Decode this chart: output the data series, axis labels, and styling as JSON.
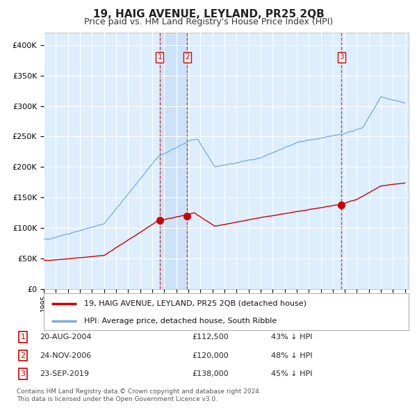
{
  "title": "19, HAIG AVENUE, LEYLAND, PR25 2QB",
  "subtitle": "Price paid vs. HM Land Registry's House Price Index (HPI)",
  "title_fontsize": 11,
  "subtitle_fontsize": 9,
  "background_color": "#ffffff",
  "plot_bg_color": "#ddeeff",
  "grid_color": "#ffffff",
  "red_line_color": "#cc0000",
  "blue_line_color": "#7aaadd",
  "dashed_line_color": "#cc0000",
  "marker_color": "#cc0000",
  "ylim": [
    0,
    420000
  ],
  "yticks": [
    0,
    50000,
    100000,
    150000,
    200000,
    250000,
    300000,
    350000,
    400000
  ],
  "ytick_labels": [
    "£0",
    "£50K",
    "£100K",
    "£150K",
    "£200K",
    "£250K",
    "£300K",
    "£350K",
    "£400K"
  ],
  "year_start": 1995,
  "year_end": 2025,
  "transactions": [
    {
      "id": 1,
      "date_label": "20-AUG-2004",
      "year": 2004.63,
      "price": 112500,
      "pct": "43%",
      "dir": "↓"
    },
    {
      "id": 2,
      "date_label": "24-NOV-2006",
      "year": 2006.9,
      "price": 120000,
      "pct": "48%",
      "dir": "↓"
    },
    {
      "id": 3,
      "date_label": "23-SEP-2019",
      "year": 2019.73,
      "price": 138000,
      "pct": "45%",
      "dir": "↓"
    }
  ],
  "legend_line1": "19, HAIG AVENUE, LEYLAND, PR25 2QB (detached house)",
  "legend_line2": "HPI: Average price, detached house, South Ribble",
  "footer1": "Contains HM Land Registry data © Crown copyright and database right 2024.",
  "footer2": "This data is licensed under the Open Government Licence v3.0."
}
